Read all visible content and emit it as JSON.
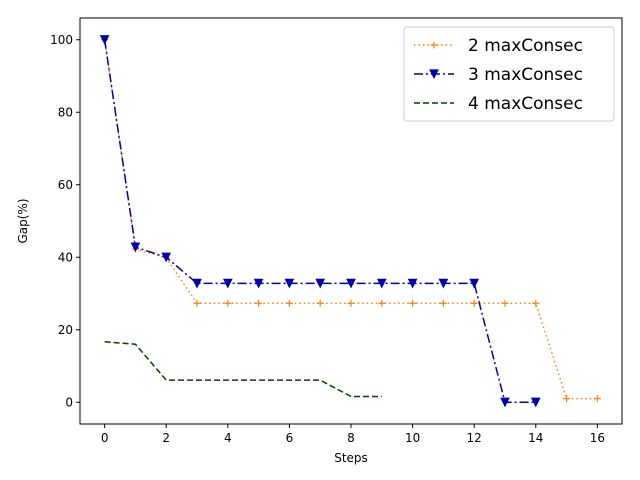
{
  "chart_data": {
    "type": "line",
    "xlabel": "Steps",
    "ylabel": "Gap(%)",
    "xlim": [
      -0.8,
      16.8
    ],
    "ylim": [
      -6,
      106
    ],
    "xticks": [
      0,
      2,
      4,
      6,
      8,
      10,
      12,
      14,
      16
    ],
    "yticks": [
      0,
      20,
      40,
      60,
      80,
      100
    ],
    "grid": false,
    "legend_position": "upper-right",
    "series": [
      {
        "name": "2 maxConsec",
        "color": "#ff7f0e",
        "linestyle": "dotted",
        "marker": "plus",
        "x": [
          0,
          1,
          2,
          3,
          4,
          5,
          6,
          7,
          8,
          9,
          10,
          11,
          12,
          13,
          14,
          15,
          16
        ],
        "y": [
          100,
          42.3,
          39.8,
          27.3,
          27.3,
          27.3,
          27.3,
          27.3,
          27.3,
          27.3,
          27.3,
          27.3,
          27.3,
          27.3,
          27.3,
          1.0,
          1.0
        ]
      },
      {
        "name": "3 maxConsec",
        "color": "#0000aa",
        "linestyle": "dashdot",
        "marker": "triangle-down",
        "x": [
          0,
          1,
          2,
          3,
          4,
          5,
          6,
          7,
          8,
          9,
          10,
          11,
          12,
          13,
          14
        ],
        "y": [
          100,
          42.8,
          40.0,
          32.8,
          32.8,
          32.8,
          32.8,
          32.8,
          32.8,
          32.8,
          32.8,
          32.8,
          32.8,
          0,
          0
        ]
      },
      {
        "name": "4 maxConsec",
        "color": "#004400",
        "linestyle": "dashed",
        "marker": "none",
        "x": [
          0,
          1,
          2,
          3,
          4,
          5,
          6,
          7,
          8,
          9
        ],
        "y": [
          16.7,
          16.0,
          6.1,
          6.1,
          6.1,
          6.1,
          6.1,
          6.1,
          1.6,
          1.6
        ]
      }
    ]
  }
}
